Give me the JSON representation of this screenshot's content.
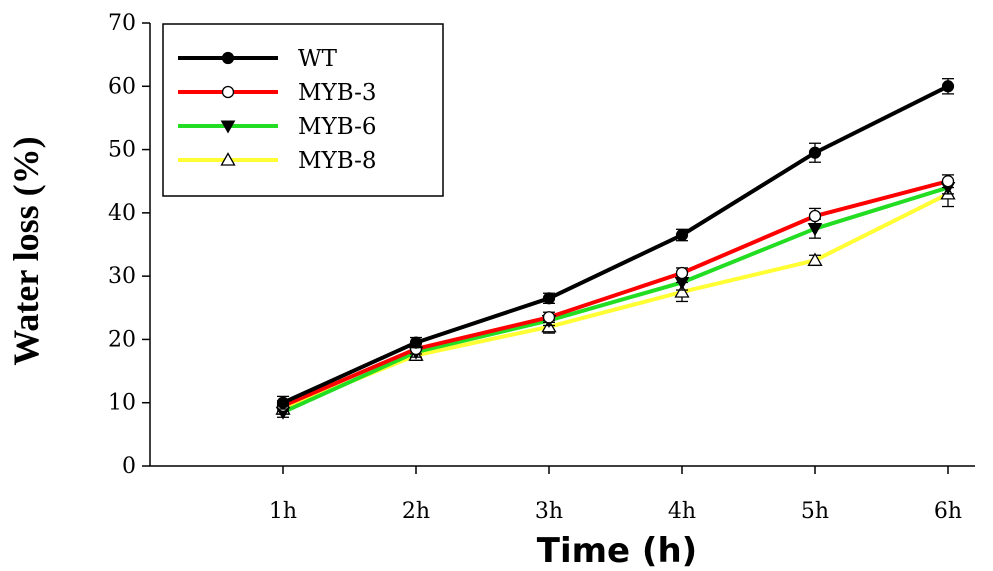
{
  "chart_data": {
    "type": "line",
    "categories": [
      "1h",
      "2h",
      "3h",
      "4h",
      "5h",
      "6h"
    ],
    "ylabel": "Water loss (%)",
    "xlabel": "Time (h)",
    "ylim": [
      0,
      70
    ],
    "yticks": [
      "0",
      "10",
      "20",
      "30",
      "40",
      "50",
      "60",
      "70"
    ],
    "legend_position": "top-left",
    "series": [
      {
        "name": "WT",
        "color": "#000000",
        "marker": "filled-circle",
        "values": [
          10.0,
          19.5,
          26.5,
          36.5,
          49.5,
          60.0
        ],
        "errors": [
          1.0,
          0.8,
          0.8,
          0.9,
          1.5,
          1.2
        ]
      },
      {
        "name": "MYB-3",
        "color": "#ff0000",
        "marker": "open-circle",
        "values": [
          9.5,
          18.5,
          23.5,
          30.5,
          39.5,
          45.0
        ],
        "errors": [
          0.8,
          0.8,
          0.8,
          0.8,
          1.2,
          1.0
        ]
      },
      {
        "name": "MYB-6",
        "color": "#22dd22",
        "marker": "filled-triangle-down",
        "values": [
          8.5,
          18.0,
          23.0,
          29.0,
          37.5,
          44.0
        ],
        "errors": [
          0.8,
          0.8,
          0.8,
          1.2,
          1.5,
          1.0
        ]
      },
      {
        "name": "MYB-8",
        "color": "#ffff33",
        "marker": "open-triangle-up",
        "values": [
          9.0,
          17.5,
          22.0,
          27.5,
          32.5,
          43.0
        ],
        "errors": [
          0.8,
          0.8,
          1.0,
          1.5,
          0.8,
          2.0
        ]
      }
    ]
  }
}
